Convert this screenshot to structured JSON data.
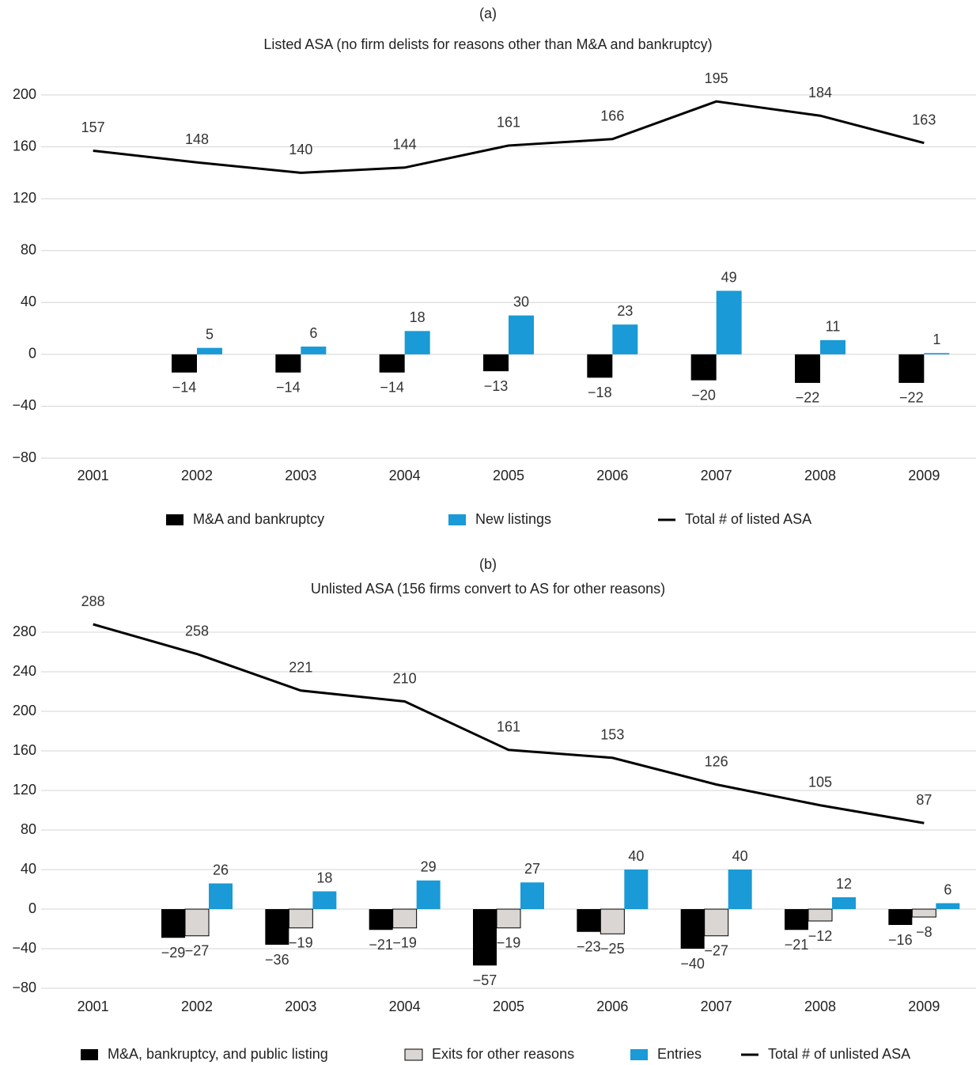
{
  "chart_data": [
    {
      "type": "bar",
      "label": "(a)",
      "title": "Listed ASA (no firm delists for reasons other than M&A and bankruptcy)",
      "categories": [
        "2001",
        "2002",
        "2003",
        "2004",
        "2005",
        "2006",
        "2007",
        "2008",
        "2009"
      ],
      "ylim": [
        -80,
        200
      ],
      "yticks": [
        {
          "value": -80,
          "label": "−80"
        },
        {
          "value": -40,
          "label": "−40"
        },
        0,
        40,
        80,
        120,
        160,
        200
      ],
      "grid": true,
      "series": [
        {
          "name": "M&A and bankruptcy",
          "type": "bar",
          "color": "#000000",
          "values": [
            null,
            -14,
            -14,
            -14,
            -13,
            -18,
            -20,
            -22,
            -22
          ],
          "value_labels": [
            null,
            "−14",
            "−14",
            "−14",
            "−13",
            "−18",
            "−20",
            "−22",
            "−22"
          ]
        },
        {
          "name": "New listings",
          "type": "bar",
          "color": "#1a9ad6",
          "values": [
            null,
            5,
            6,
            18,
            30,
            23,
            49,
            11,
            1
          ]
        },
        {
          "name": "Total # of listed ASA",
          "type": "line",
          "color": "#000000",
          "values": [
            157,
            148,
            140,
            144,
            161,
            166,
            195,
            184,
            163
          ]
        }
      ]
    },
    {
      "type": "bar",
      "label": "(b)",
      "title": "Unlisted ASA (156 firms convert to AS for other reasons)",
      "categories": [
        "2001",
        "2002",
        "2003",
        "2004",
        "2005",
        "2006",
        "2007",
        "2008",
        "2009"
      ],
      "ylim": [
        -80,
        280
      ],
      "yticks": [
        {
          "value": -80,
          "label": "−80"
        },
        {
          "value": -40,
          "label": "−40"
        },
        0,
        40,
        80,
        120,
        160,
        200,
        240,
        280
      ],
      "grid": true,
      "series": [
        {
          "name": "M&A, bankruptcy, and public listing",
          "type": "bar",
          "color": "#000000",
          "values": [
            null,
            -29,
            -36,
            -21,
            -57,
            -23,
            -40,
            -21,
            -16
          ],
          "value_labels": [
            null,
            "−29",
            "−36",
            "−21",
            "−57",
            "−23",
            "−40",
            "−21",
            "−16"
          ]
        },
        {
          "name": "Exits for other reasons",
          "type": "bar",
          "color": "#d9d6d3",
          "values": [
            null,
            -27,
            -19,
            -19,
            -19,
            -25,
            -27,
            -12,
            -8
          ],
          "value_labels": [
            null,
            "−27",
            "−19",
            "−19",
            "−19",
            "−25",
            "−27",
            "−12",
            "−8"
          ]
        },
        {
          "name": "Entries",
          "type": "bar",
          "color": "#1a9ad6",
          "values": [
            null,
            26,
            18,
            29,
            27,
            40,
            40,
            12,
            6
          ]
        },
        {
          "name": "Total # of unlisted ASA",
          "type": "line",
          "color": "#000000",
          "values": [
            288,
            258,
            221,
            210,
            161,
            153,
            126,
            105,
            87
          ]
        }
      ]
    }
  ]
}
